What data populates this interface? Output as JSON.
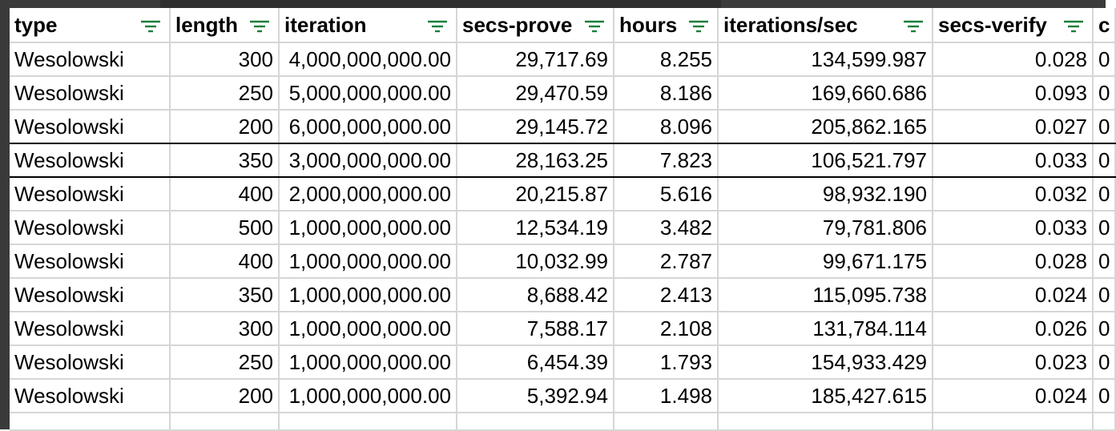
{
  "colors": {
    "filter_icon": "#188038",
    "header_band": "#d8dde8",
    "grid_line": "#d6d6d6"
  },
  "columns": [
    {
      "label": "type"
    },
    {
      "label": "length"
    },
    {
      "label": "iteration"
    },
    {
      "label": "secs-prove"
    },
    {
      "label": "hours"
    },
    {
      "label": "iterations/sec"
    },
    {
      "label": "secs-verify"
    },
    {
      "label": "c"
    }
  ],
  "rows": [
    [
      "Wesolowski",
      "300",
      "4,000,000,000.00",
      "29,717.69",
      "8.255",
      "134,599.987",
      "0.028",
      "0"
    ],
    [
      "Wesolowski",
      "250",
      "5,000,000,000.00",
      "29,470.59",
      "8.186",
      "169,660.686",
      "0.093",
      "0"
    ],
    [
      "Wesolowski",
      "200",
      "6,000,000,000.00",
      "29,145.72",
      "8.096",
      "205,862.165",
      "0.027",
      "0"
    ],
    [
      "Wesolowski",
      "350",
      "3,000,000,000.00",
      "28,163.25",
      "7.823",
      "106,521.797",
      "0.033",
      "0"
    ],
    [
      "Wesolowski",
      "400",
      "2,000,000,000.00",
      "20,215.87",
      "5.616",
      "98,932.190",
      "0.032",
      "0"
    ],
    [
      "Wesolowski",
      "500",
      "1,000,000,000.00",
      "12,534.19",
      "3.482",
      "79,781.806",
      "0.033",
      "0"
    ],
    [
      "Wesolowski",
      "400",
      "1,000,000,000.00",
      "10,032.99",
      "2.787",
      "99,671.175",
      "0.028",
      "0"
    ],
    [
      "Wesolowski",
      "350",
      "1,000,000,000.00",
      "8,688.42",
      "2.413",
      "115,095.738",
      "0.024",
      "0"
    ],
    [
      "Wesolowski",
      "300",
      "1,000,000,000.00",
      "7,588.17",
      "2.108",
      "131,784.114",
      "0.026",
      "0"
    ],
    [
      "Wesolowski",
      "250",
      "1,000,000,000.00",
      "6,454.39",
      "1.793",
      "154,933.429",
      "0.023",
      "0"
    ],
    [
      "Wesolowski",
      "200",
      "1,000,000,000.00",
      "5,392.94",
      "1.498",
      "185,427.615",
      "0.024",
      "0"
    ]
  ]
}
